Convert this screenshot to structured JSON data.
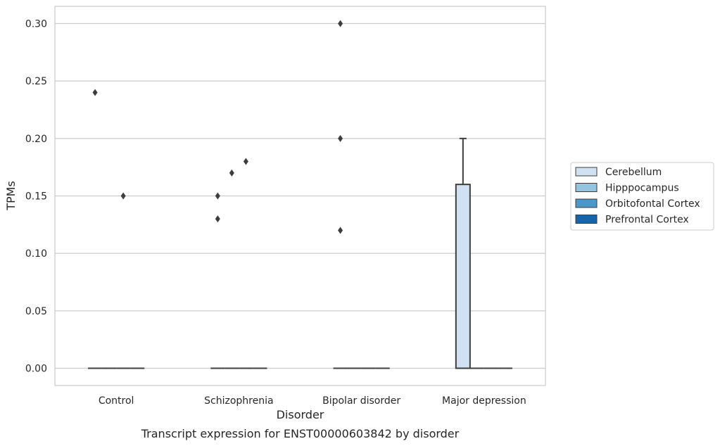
{
  "chart_data": {
    "type": "box",
    "title": "",
    "caption": "Transcript expression for ENST00000603842 by disorder",
    "xlabel": "Disorder",
    "ylabel": "TPMs",
    "categories": [
      "Control",
      "Schizophrenia",
      "Bipolar disorder",
      "Major depression"
    ],
    "ylim": [
      -0.015,
      0.315
    ],
    "yticks": [
      0.0,
      0.05,
      0.1,
      0.15,
      0.2,
      0.25,
      0.3
    ],
    "ytick_labels": [
      "0.00",
      "0.05",
      "0.10",
      "0.15",
      "0.20",
      "0.25",
      "0.30"
    ],
    "grid": "horizontal",
    "legend_position": "right",
    "series": [
      {
        "name": "Cerebellum",
        "color": "#d0e1f2",
        "boxes": [
          {
            "category": "Control",
            "q1": 0,
            "median": 0,
            "q3": 0,
            "whisker_low": 0,
            "whisker_high": 0,
            "outliers": [
              0.24
            ]
          },
          {
            "category": "Schizophrenia",
            "q1": 0,
            "median": 0,
            "q3": 0,
            "whisker_low": 0,
            "whisker_high": 0,
            "outliers": [
              0.15,
              0.13
            ]
          },
          {
            "category": "Bipolar disorder",
            "q1": 0,
            "median": 0,
            "q3": 0,
            "whisker_low": 0,
            "whisker_high": 0,
            "outliers": [
              0.3,
              0.2,
              0.12
            ]
          },
          {
            "category": "Major depression",
            "q1": 0,
            "median": 0,
            "q3": 0.16,
            "whisker_low": 0,
            "whisker_high": 0.2,
            "outliers": []
          }
        ]
      },
      {
        "name": "Hipppocampus",
        "color": "#94c4df",
        "boxes": [
          {
            "category": "Control",
            "q1": 0,
            "median": 0,
            "q3": 0,
            "whisker_low": 0,
            "whisker_high": 0,
            "outliers": []
          },
          {
            "category": "Schizophrenia",
            "q1": 0,
            "median": 0,
            "q3": 0,
            "whisker_low": 0,
            "whisker_high": 0,
            "outliers": [
              0.17
            ]
          },
          {
            "category": "Bipolar disorder",
            "q1": 0,
            "median": 0,
            "q3": 0,
            "whisker_low": 0,
            "whisker_high": 0,
            "outliers": []
          },
          {
            "category": "Major depression",
            "q1": 0,
            "median": 0,
            "q3": 0,
            "whisker_low": 0,
            "whisker_high": 0,
            "outliers": []
          }
        ]
      },
      {
        "name": "Orbitofontal Cortex",
        "color": "#4a98c9",
        "boxes": [
          {
            "category": "Control",
            "q1": 0,
            "median": 0,
            "q3": 0,
            "whisker_low": 0,
            "whisker_high": 0,
            "outliers": [
              0.15
            ]
          },
          {
            "category": "Schizophrenia",
            "q1": 0,
            "median": 0,
            "q3": 0,
            "whisker_low": 0,
            "whisker_high": 0,
            "outliers": [
              0.18
            ]
          },
          {
            "category": "Bipolar disorder",
            "q1": 0,
            "median": 0,
            "q3": 0,
            "whisker_low": 0,
            "whisker_high": 0,
            "outliers": []
          },
          {
            "category": "Major depression",
            "q1": 0,
            "median": 0,
            "q3": 0,
            "whisker_low": 0,
            "whisker_high": 0,
            "outliers": []
          }
        ]
      },
      {
        "name": "Prefrontal Cortex",
        "color": "#1764ab",
        "boxes": [
          {
            "category": "Control",
            "q1": 0,
            "median": 0,
            "q3": 0,
            "whisker_low": 0,
            "whisker_high": 0,
            "outliers": []
          },
          {
            "category": "Schizophrenia",
            "q1": 0,
            "median": 0,
            "q3": 0,
            "whisker_low": 0,
            "whisker_high": 0,
            "outliers": []
          },
          {
            "category": "Bipolar disorder",
            "q1": 0,
            "median": 0,
            "q3": 0,
            "whisker_low": 0,
            "whisker_high": 0,
            "outliers": []
          },
          {
            "category": "Major depression",
            "q1": 0,
            "median": 0,
            "q3": 0,
            "whisker_low": 0,
            "whisker_high": 0,
            "outliers": []
          }
        ]
      }
    ]
  }
}
